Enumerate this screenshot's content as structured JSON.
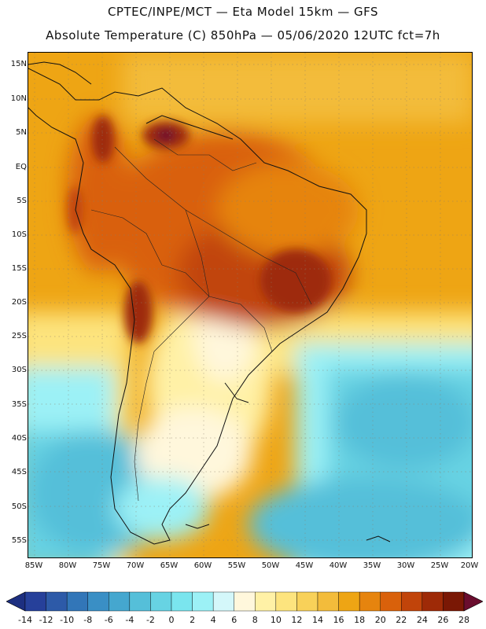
{
  "header": {
    "title_line1": "CPTEC/INPE/MCT —  Eta Model 15km — GFS",
    "title_line2": "Absolute Temperature (C) 850hPa — 05/06/2020 12UTC fct=7h"
  },
  "map": {
    "lat_labels": [
      "15N",
      "10N",
      "5N",
      "EQ",
      "5S",
      "10S",
      "15S",
      "20S",
      "25S",
      "30S",
      "35S",
      "40S",
      "45S",
      "50S",
      "55S"
    ],
    "lon_labels": [
      "85W",
      "80W",
      "75W",
      "70W",
      "65W",
      "60W",
      "55W",
      "50W",
      "45W",
      "40W",
      "35W",
      "30W",
      "25W",
      "20W"
    ]
  },
  "colorbar": {
    "labels": [
      "-14",
      "-12",
      "-10",
      "-8",
      "-6",
      "-4",
      "-2",
      "0",
      "2",
      "4",
      "6",
      "8",
      "10",
      "12",
      "14",
      "16",
      "18",
      "20",
      "22",
      "24",
      "26",
      "28"
    ],
    "colors": [
      "#26409a",
      "#2d5aa8",
      "#3276b8",
      "#3a8fc5",
      "#45a7cf",
      "#55bfd9",
      "#67d3e3",
      "#7ae5ee",
      "#9cf1f6",
      "#d4f7fa",
      "#fff7dc",
      "#fff1a6",
      "#fde47e",
      "#f8d159",
      "#f3bc3b",
      "#eea514",
      "#e6840e",
      "#d9610b",
      "#c1440a",
      "#9e2a07",
      "#7a1805"
    ],
    "under_color": "#1d2f80",
    "over_color": "#6a0d2e"
  }
}
